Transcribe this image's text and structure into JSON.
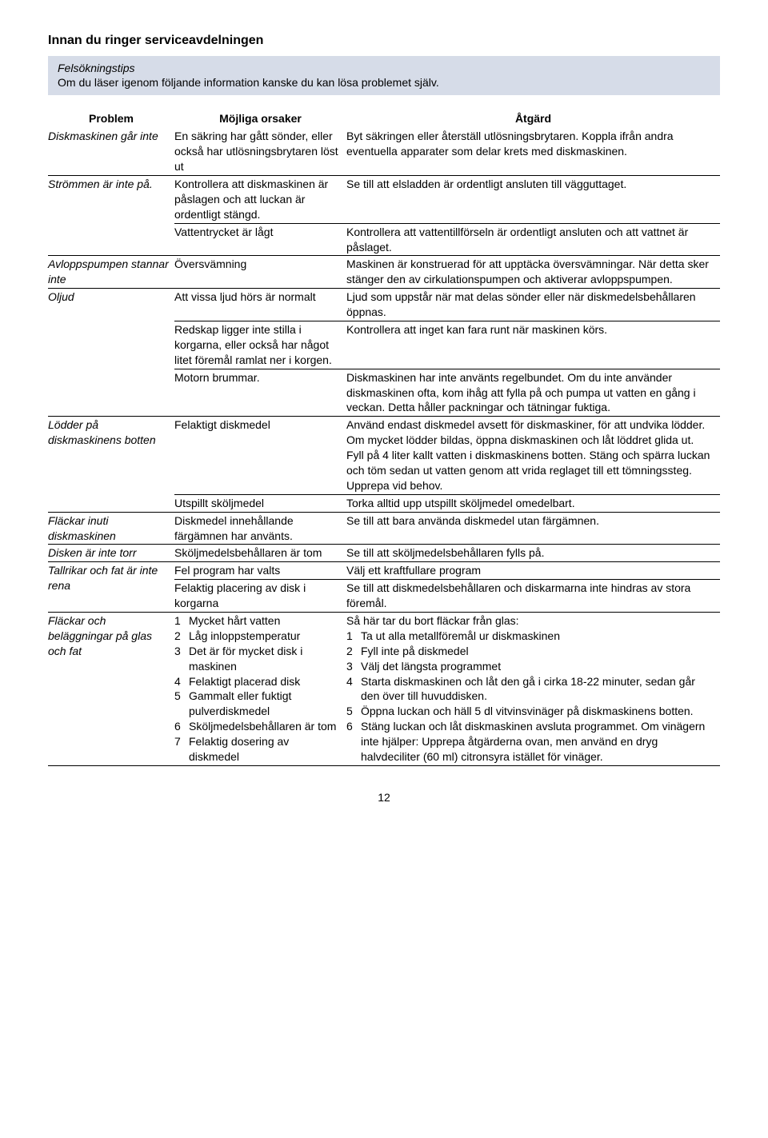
{
  "heading": "Innan du ringer serviceavdelningen",
  "intro_title": "Felsökningstips",
  "intro_sub": "Om du läser igenom följande information kanske du kan lösa problemet själv.",
  "headers": {
    "c1": "Problem",
    "c2": "Möjliga orsaker",
    "c3": "Åtgärd"
  },
  "rows": [
    {
      "problem": "Diskmaskinen går inte",
      "prob_rowspan": 1,
      "cause": "En säkring har gått sönder, eller också har utlösningsbrytaren löst ut",
      "action": "Byt säkringen eller återställ utlösningsbrytaren. Koppla ifrån andra eventuella apparater som delar krets med diskmaskinen."
    },
    {
      "problem": "Strömmen är inte på.",
      "prob_rowspan": 2,
      "cause": "Kontrollera att diskmaskinen är påslagen och att luckan är ordentligt stängd.",
      "action": "Se till att elsladden är ordentligt ansluten till vägguttaget."
    },
    {
      "cause": "Vattentrycket är lågt",
      "action": "Kontrollera att vattentillförseln är ordentligt ansluten och att vattnet är påslaget."
    },
    {
      "problem": "Avloppspumpen stannar inte",
      "prob_rowspan": 1,
      "cause": "Översvämning",
      "action": "Maskinen är konstruerad för att upptäcka översvämningar. När detta sker stänger den av cirkulationspumpen och aktiverar avloppspumpen."
    },
    {
      "problem": "Oljud",
      "prob_rowspan": 3,
      "cause": "Att vissa ljud hörs är normalt",
      "action": "Ljud som uppstår när mat delas sönder eller när diskmedelsbehållaren öppnas."
    },
    {
      "cause": "Redskap ligger inte stilla i korgarna, eller också har något litet föremål ramlat ner i korgen.",
      "action": "Kontrollera att inget kan fara runt när maskinen körs."
    },
    {
      "cause": "Motorn brummar.",
      "action": "Diskmaskinen har inte använts regelbundet. Om du inte använder diskmaskinen ofta, kom ihåg att fylla på och pumpa ut vatten en gång i veckan. Detta håller packningar och tätningar fuktiga."
    },
    {
      "problem": "Lödder på diskmaskinens botten",
      "prob_rowspan": 2,
      "cause": "Felaktigt diskmedel",
      "action": "Använd endast diskmedel avsett för diskmaskiner, för att undvika lödder.\nOm mycket lödder bildas, öppna diskmaskinen och låt löddret glida ut.\nFyll på 4 liter kallt vatten i diskmaskinens botten. Stäng och spärra luckan och töm sedan ut vatten genom att vrida reglaget till ett tömningssteg. Upprepa vid behov."
    },
    {
      "cause": "Utspillt sköljmedel",
      "action": "Torka alltid upp utspillt sköljmedel omedelbart."
    },
    {
      "problem": "Fläckar inuti diskmaskinen",
      "prob_rowspan": 1,
      "cause": "Diskmedel innehållande färgämnen har använts.",
      "action": "Se till att bara använda diskmedel utan färgämnen."
    },
    {
      "problem": "Disken är inte torr",
      "prob_rowspan": 1,
      "cause": "Sköljmedelsbehållaren är tom",
      "action": "Se till att sköljmedelsbehållaren fylls på."
    },
    {
      "problem": "Tallrikar och fat är inte rena",
      "prob_rowspan": 2,
      "cause": "Fel program har valts",
      "action": "Välj ett kraftfullare program"
    },
    {
      "cause": "Felaktig placering av disk i korgarna",
      "action": "Se till att diskmedelsbehållaren och diskarmarna inte hindras av stora föremål."
    },
    {
      "problem": "Fläckar och beläggningar på glas och fat",
      "prob_rowspan": 1,
      "cause_list": [
        "Mycket hårt vatten",
        "Låg inloppstemperatur",
        "Det är för mycket disk i maskinen",
        "Felaktigt placerad disk",
        "Gammalt eller fuktigt pulverdiskmedel",
        "Sköljmedelsbehållaren är tom",
        "Felaktig dosering av diskmedel"
      ],
      "action_intro": "Så här tar du bort fläckar från glas:",
      "action_list": [
        "Ta ut alla metallföremål ur diskmaskinen",
        "Fyll inte på diskmedel",
        "Välj det längsta programmet",
        "Starta diskmaskinen och låt den gå i cirka 18-22 minuter, sedan går den över till huvuddisken.",
        "Öppna luckan och häll 5 dl vitvinsvinäger på diskmaskinens botten.",
        "Stäng luckan och låt diskmaskinen avsluta programmet. Om vinägern inte hjälper: Upprepa åtgärderna ovan, men använd en dryg halvdeciliter (60 ml) citronsyra istället för vinäger."
      ]
    }
  ],
  "page_number": "12"
}
